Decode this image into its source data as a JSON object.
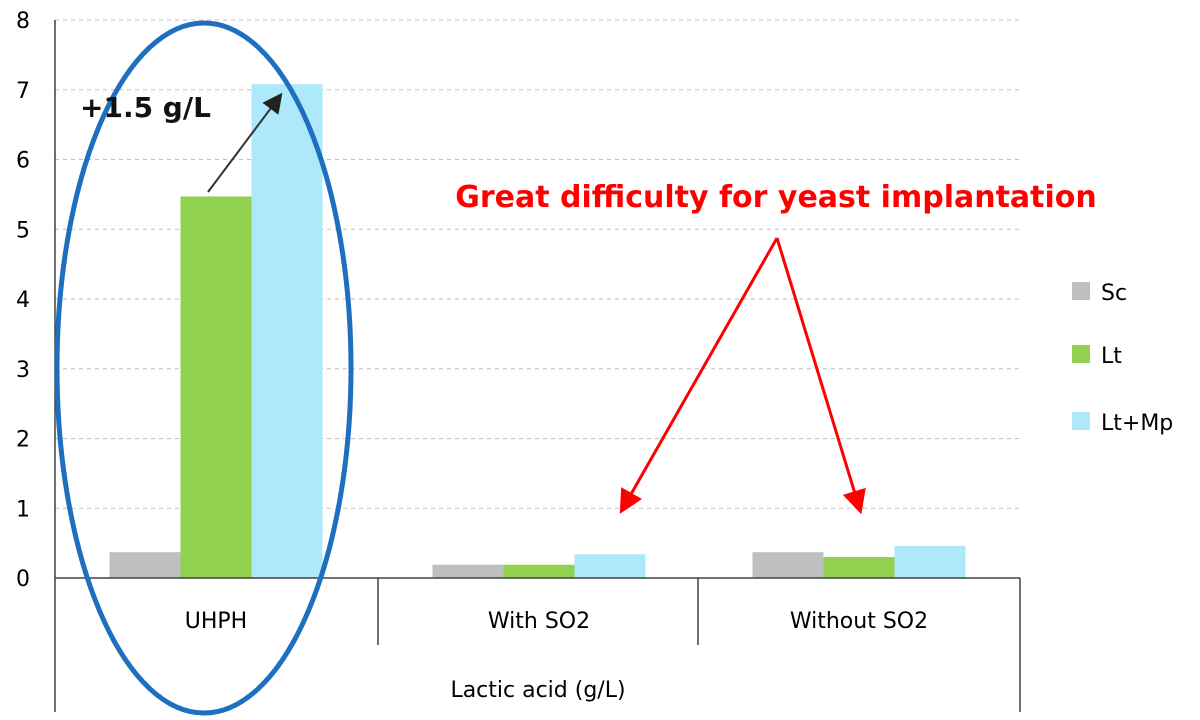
{
  "chart_data": {
    "type": "bar",
    "title": "",
    "xlabel": "Lactic acid (g/L)",
    "ylabel": "",
    "ylim": [
      0,
      8
    ],
    "yticks": [
      "0",
      "1",
      "2",
      "3",
      "4",
      "5",
      "6",
      "7",
      "8"
    ],
    "categories": [
      "UHPH",
      "With SO2",
      "Without SO2"
    ],
    "series": [
      {
        "name": "Sc",
        "color": "#bfbfbf",
        "values": [
          0.37,
          0.19,
          0.37
        ]
      },
      {
        "name": "Lt",
        "color": "#92d050",
        "values": [
          5.47,
          0.19,
          0.3
        ]
      },
      {
        "name": "Lt+Mp",
        "color": "#aee8fb",
        "values": [
          7.08,
          0.34,
          0.46
        ]
      }
    ],
    "legend_position": "right",
    "grid": true,
    "annotations": {
      "increase_label": "+1.5 g/L",
      "difficulty_text": "Great difficulty for yeast implantation"
    },
    "colors": {
      "highlight_outline": "#1f6fbf",
      "callout": "#ff0000",
      "arrow_dark": "#333333"
    }
  }
}
